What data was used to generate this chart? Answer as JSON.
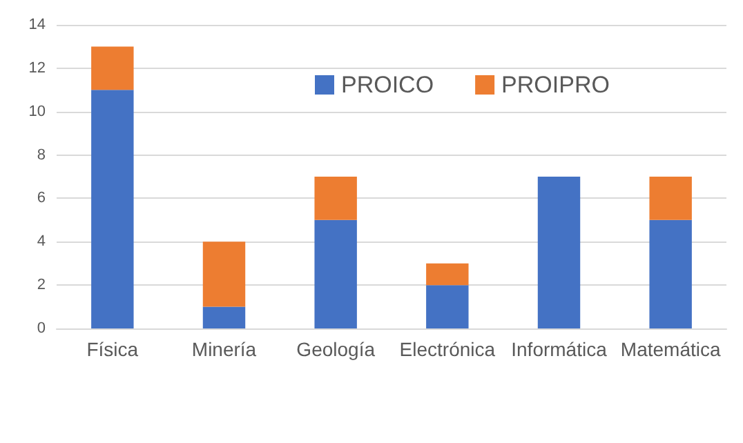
{
  "chart_data": {
    "type": "bar",
    "stacked": true,
    "categories": [
      "Física",
      "Minería",
      "Geología",
      "Electrónica",
      "Informática",
      "Matemática"
    ],
    "series": [
      {
        "name": "PROICO",
        "color": "#4472c4",
        "values": [
          11,
          1,
          5,
          2,
          7,
          5
        ]
      },
      {
        "name": "PROIPRO",
        "color": "#ed7d31",
        "values": [
          2,
          3,
          2,
          1,
          0,
          2
        ]
      }
    ],
    "ylim": [
      0,
      14
    ],
    "yticks": [
      0,
      2,
      4,
      6,
      8,
      10,
      12,
      14
    ],
    "grid": "y",
    "legend": "top"
  }
}
